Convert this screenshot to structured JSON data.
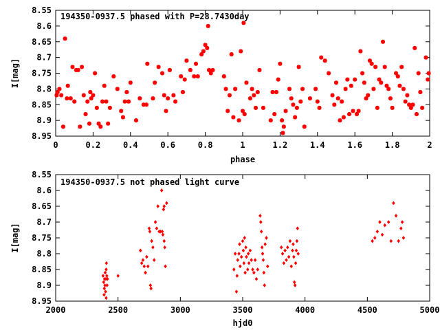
{
  "chart_data": [
    {
      "type": "scatter",
      "title": "194350-0937.5 phased with P=28.7430day",
      "xlabel": "phase",
      "ylabel": "I[mag]",
      "xlim": [
        0,
        2
      ],
      "ylim": [
        8.95,
        8.55
      ],
      "y_inverted": true,
      "grid": false,
      "marker": "star",
      "color": "#ff0000",
      "xticks": [
        "0",
        "0.2",
        "0.4",
        "0.6",
        "0.8",
        "1",
        "1.2",
        "1.4",
        "1.6",
        "1.8",
        "2"
      ],
      "yticks": [
        "8.55",
        "8.6",
        "8.65",
        "8.7",
        "8.75",
        "8.8",
        "8.85",
        "8.9",
        "8.95"
      ],
      "points": [
        [
          0.005,
          8.82
        ],
        [
          0.01,
          8.81
        ],
        [
          0.02,
          8.8
        ],
        [
          0.03,
          8.82
        ],
        [
          0.04,
          8.92
        ],
        [
          0.05,
          8.64
        ],
        [
          0.06,
          8.83
        ],
        [
          0.065,
          8.79
        ],
        [
          0.08,
          8.83
        ],
        [
          0.09,
          8.73
        ],
        [
          0.1,
          8.84
        ],
        [
          0.11,
          8.74
        ],
        [
          0.12,
          8.74
        ],
        [
          0.13,
          8.92
        ],
        [
          0.14,
          8.73
        ],
        [
          0.15,
          8.82
        ],
        [
          0.16,
          8.88
        ],
        [
          0.17,
          8.84
        ],
        [
          0.18,
          8.91
        ],
        [
          0.185,
          8.81
        ],
        [
          0.19,
          8.83
        ],
        [
          0.2,
          8.82
        ],
        [
          0.21,
          8.75
        ],
        [
          0.22,
          8.86
        ],
        [
          0.23,
          8.91
        ],
        [
          0.24,
          8.92
        ],
        [
          0.25,
          8.84
        ],
        [
          0.26,
          8.79
        ],
        [
          0.27,
          8.84
        ],
        [
          0.28,
          8.91
        ],
        [
          0.29,
          8.86
        ],
        [
          0.31,
          8.76
        ],
        [
          0.33,
          8.8
        ],
        [
          0.35,
          8.87
        ],
        [
          0.36,
          8.89
        ],
        [
          0.37,
          8.84
        ],
        [
          0.38,
          8.81
        ],
        [
          0.39,
          8.84
        ],
        [
          0.4,
          8.78
        ],
        [
          0.43,
          8.9
        ],
        [
          0.45,
          8.83
        ],
        [
          0.47,
          8.85
        ],
        [
          0.485,
          8.85
        ],
        [
          0.49,
          8.72
        ],
        [
          0.52,
          8.83
        ],
        [
          0.53,
          8.78
        ],
        [
          0.55,
          8.73
        ],
        [
          0.57,
          8.75
        ],
        [
          0.58,
          8.82
        ],
        [
          0.59,
          8.87
        ],
        [
          0.6,
          8.83
        ],
        [
          0.61,
          8.74
        ],
        [
          0.63,
          8.82
        ],
        [
          0.64,
          8.84
        ],
        [
          0.67,
          8.76
        ],
        [
          0.68,
          8.81
        ],
        [
          0.69,
          8.77
        ],
        [
          0.7,
          8.71
        ],
        [
          0.72,
          8.74
        ],
        [
          0.74,
          8.76
        ],
        [
          0.75,
          8.72
        ],
        [
          0.76,
          8.76
        ],
        [
          0.78,
          8.69
        ],
        [
          0.79,
          8.68
        ],
        [
          0.8,
          8.66
        ],
        [
          0.81,
          8.67
        ],
        [
          0.815,
          8.6
        ],
        [
          0.82,
          8.74
        ],
        [
          0.83,
          8.75
        ],
        [
          0.84,
          8.74
        ],
        [
          0.9,
          8.76
        ],
        [
          0.91,
          8.8
        ],
        [
          0.92,
          8.87
        ],
        [
          0.93,
          8.82
        ],
        [
          0.94,
          8.69
        ],
        [
          0.95,
          8.89
        ],
        [
          0.96,
          8.8
        ],
        [
          0.98,
          8.9
        ],
        [
          0.99,
          8.68
        ],
        [
          1.0,
          8.87
        ],
        [
          1.005,
          8.59
        ],
        [
          1.01,
          8.88
        ],
        [
          1.02,
          8.78
        ],
        [
          1.04,
          8.83
        ],
        [
          1.05,
          8.8
        ],
        [
          1.06,
          8.82
        ],
        [
          1.07,
          8.86
        ],
        [
          1.08,
          8.81
        ],
        [
          1.09,
          8.74
        ],
        [
          1.11,
          8.86
        ],
        [
          1.15,
          8.9
        ],
        [
          1.16,
          8.81
        ],
        [
          1.17,
          8.88
        ],
        [
          1.18,
          8.81
        ],
        [
          1.19,
          8.77
        ],
        [
          1.2,
          8.72
        ],
        [
          1.21,
          8.9
        ],
        [
          1.215,
          8.94
        ],
        [
          1.22,
          8.92
        ],
        [
          1.23,
          8.87
        ],
        [
          1.25,
          8.8
        ],
        [
          1.26,
          8.83
        ],
        [
          1.27,
          8.85
        ],
        [
          1.28,
          8.89
        ],
        [
          1.29,
          8.86
        ],
        [
          1.3,
          8.73
        ],
        [
          1.31,
          8.84
        ],
        [
          1.32,
          8.8
        ],
        [
          1.33,
          8.92
        ],
        [
          1.36,
          8.83
        ],
        [
          1.39,
          8.8
        ],
        [
          1.4,
          8.84
        ],
        [
          1.41,
          8.86
        ],
        [
          1.42,
          8.7
        ],
        [
          1.44,
          8.71
        ],
        [
          1.46,
          8.75
        ],
        [
          1.48,
          8.82
        ],
        [
          1.49,
          8.85
        ],
        [
          1.5,
          8.78
        ],
        [
          1.51,
          8.83
        ],
        [
          1.52,
          8.9
        ],
        [
          1.53,
          8.84
        ],
        [
          1.54,
          8.89
        ],
        [
          1.55,
          8.8
        ],
        [
          1.56,
          8.77
        ],
        [
          1.57,
          8.88
        ],
        [
          1.58,
          8.79
        ],
        [
          1.59,
          8.87
        ],
        [
          1.6,
          8.77
        ],
        [
          1.61,
          8.88
        ],
        [
          1.62,
          8.87
        ],
        [
          1.63,
          8.68
        ],
        [
          1.64,
          8.75
        ],
        [
          1.65,
          8.78
        ],
        [
          1.66,
          8.83
        ],
        [
          1.67,
          8.82
        ],
        [
          1.68,
          8.71
        ],
        [
          1.69,
          8.72
        ],
        [
          1.7,
          8.8
        ],
        [
          1.71,
          8.73
        ],
        [
          1.72,
          8.86
        ],
        [
          1.73,
          8.77
        ],
        [
          1.74,
          8.78
        ],
        [
          1.75,
          8.65
        ],
        [
          1.76,
          8.73
        ],
        [
          1.77,
          8.79
        ],
        [
          1.78,
          8.8
        ],
        [
          1.79,
          8.83
        ],
        [
          1.8,
          8.86
        ],
        [
          1.82,
          8.75
        ],
        [
          1.83,
          8.76
        ],
        [
          1.84,
          8.79
        ],
        [
          1.85,
          8.73
        ],
        [
          1.86,
          8.8
        ],
        [
          1.87,
          8.84
        ],
        [
          1.88,
          8.82
        ],
        [
          1.89,
          8.85
        ],
        [
          1.9,
          8.86
        ],
        [
          1.91,
          8.85
        ],
        [
          1.92,
          8.67
        ],
        [
          1.93,
          8.88
        ],
        [
          1.94,
          8.75
        ],
        [
          1.95,
          8.81
        ],
        [
          1.96,
          8.86
        ],
        [
          1.98,
          8.7
        ],
        [
          1.99,
          8.77
        ],
        [
          1.995,
          8.75
        ]
      ]
    },
    {
      "type": "scatter",
      "title": "194350-0937.5 not phased light curve",
      "xlabel": "hjd0",
      "ylabel": "I[mag]",
      "xlim": [
        2000,
        5000
      ],
      "ylim": [
        8.95,
        8.55
      ],
      "y_inverted": true,
      "grid": false,
      "marker": "diamond",
      "color": "#ff0000",
      "xticks": [
        "2000",
        "2500",
        "3000",
        "3500",
        "4000",
        "4500",
        "5000"
      ],
      "yticks": [
        "8.55",
        "8.6",
        "8.65",
        "8.7",
        "8.75",
        "8.8",
        "8.85",
        "8.9",
        "8.95"
      ],
      "points": [
        [
          2380,
          8.87
        ],
        [
          2385,
          8.89
        ],
        [
          2388,
          8.93
        ],
        [
          2390,
          8.91
        ],
        [
          2392,
          8.88
        ],
        [
          2395,
          8.9
        ],
        [
          2397,
          8.86
        ],
        [
          2400,
          8.92
        ],
        [
          2402,
          8.88
        ],
        [
          2405,
          8.85
        ],
        [
          2407,
          8.83
        ],
        [
          2410,
          8.87
        ],
        [
          2412,
          8.9
        ],
        [
          2415,
          8.88
        ],
        [
          2405,
          8.94
        ],
        [
          2500,
          8.87
        ],
        [
          2680,
          8.79
        ],
        [
          2690,
          8.83
        ],
        [
          2700,
          8.82
        ],
        [
          2710,
          8.84
        ],
        [
          2720,
          8.86
        ],
        [
          2730,
          8.81
        ],
        [
          2740,
          8.84
        ],
        [
          2750,
          8.72
        ],
        [
          2755,
          8.73
        ],
        [
          2760,
          8.9
        ],
        [
          2765,
          8.91
        ],
        [
          2770,
          8.76
        ],
        [
          2780,
          8.78
        ],
        [
          2790,
          8.82
        ],
        [
          2800,
          8.7
        ],
        [
          2810,
          8.72
        ],
        [
          2820,
          8.65
        ],
        [
          2830,
          8.73
        ],
        [
          2840,
          8.73
        ],
        [
          2850,
          8.6
        ],
        [
          2855,
          8.73
        ],
        [
          2860,
          8.74
        ],
        [
          2870,
          8.76
        ],
        [
          2875,
          8.78
        ],
        [
          2880,
          8.84
        ],
        [
          2890,
          8.64
        ],
        [
          2870,
          8.65
        ],
        [
          2865,
          8.66
        ],
        [
          3430,
          8.85
        ],
        [
          3440,
          8.8
        ],
        [
          3450,
          8.92
        ],
        [
          3455,
          8.87
        ],
        [
          3460,
          8.82
        ],
        [
          3470,
          8.8
        ],
        [
          3475,
          8.77
        ],
        [
          3480,
          8.84
        ],
        [
          3490,
          8.81
        ],
        [
          3500,
          8.76
        ],
        [
          3505,
          8.79
        ],
        [
          3510,
          8.83
        ],
        [
          3515,
          8.75
        ],
        [
          3520,
          8.86
        ],
        [
          3525,
          8.78
        ],
        [
          3530,
          8.81
        ],
        [
          3540,
          8.85
        ],
        [
          3545,
          8.8
        ],
        [
          3550,
          8.83
        ],
        [
          3560,
          8.79
        ],
        [
          3570,
          8.82
        ],
        [
          3580,
          8.85
        ],
        [
          3590,
          8.86
        ],
        [
          3600,
          8.82
        ],
        [
          3610,
          8.88
        ],
        [
          3620,
          8.85
        ],
        [
          3640,
          8.68
        ],
        [
          3645,
          8.7
        ],
        [
          3650,
          8.73
        ],
        [
          3655,
          8.78
        ],
        [
          3660,
          8.8
        ],
        [
          3665,
          8.82
        ],
        [
          3670,
          8.86
        ],
        [
          3675,
          8.9
        ],
        [
          3680,
          8.77
        ],
        [
          3690,
          8.75
        ],
        [
          3700,
          8.84
        ],
        [
          3810,
          8.78
        ],
        [
          3820,
          8.8
        ],
        [
          3830,
          8.83
        ],
        [
          3840,
          8.79
        ],
        [
          3850,
          8.82
        ],
        [
          3860,
          8.78
        ],
        [
          3870,
          8.81
        ],
        [
          3880,
          8.76
        ],
        [
          3890,
          8.84
        ],
        [
          3900,
          8.79
        ],
        [
          3905,
          8.77
        ],
        [
          3910,
          8.81
        ],
        [
          3915,
          8.89
        ],
        [
          3920,
          8.9
        ],
        [
          3925,
          8.83
        ],
        [
          3930,
          8.79
        ],
        [
          3935,
          8.76
        ],
        [
          3940,
          8.72
        ],
        [
          3945,
          8.8
        ],
        [
          4540,
          8.76
        ],
        [
          4560,
          8.75
        ],
        [
          4580,
          8.73
        ],
        [
          4600,
          8.7
        ],
        [
          4620,
          8.74
        ],
        [
          4640,
          8.71
        ],
        [
          4670,
          8.7
        ],
        [
          4690,
          8.76
        ],
        [
          4710,
          8.64
        ],
        [
          4730,
          8.68
        ],
        [
          4750,
          8.76
        ],
        [
          4770,
          8.72
        ],
        [
          4790,
          8.75
        ],
        [
          4780,
          8.7
        ]
      ]
    }
  ]
}
